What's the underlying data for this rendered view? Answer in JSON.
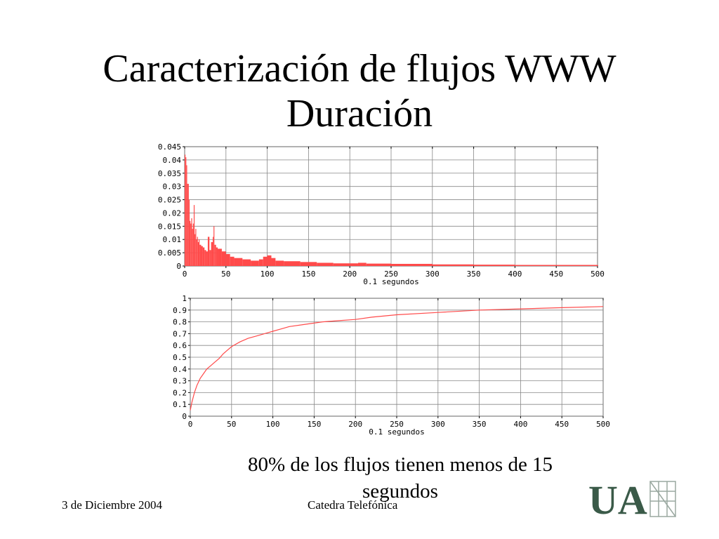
{
  "slide": {
    "title_line1": "Caracterización de flujos WWW",
    "title_line2": "Duración",
    "caption": "80% de los flujos tienen menos de 15 segundos",
    "footer_date": "3 de Diciembre 2004",
    "footer_org": "Catedra Telefónica",
    "logo_text": "UA"
  },
  "colors": {
    "series": "#ff4a4a",
    "grid": "#888888",
    "logo": "#3a5a48"
  },
  "chart_data": [
    {
      "type": "bar",
      "xlabel": "0.1 segundos",
      "xlim": [
        0,
        500
      ],
      "ylim": [
        0,
        0.045
      ],
      "xticks": [
        0,
        50,
        100,
        150,
        200,
        250,
        300,
        350,
        400,
        450,
        500
      ],
      "yticks": [
        "0",
        "0.005",
        "0.01",
        "0.015",
        "0.02",
        "0.025",
        "0.03",
        "0.035",
        "0.04",
        "0.045"
      ],
      "grid": true,
      "series": [
        {
          "x": [
            0,
            1,
            2,
            3,
            4,
            5,
            6,
            7,
            8,
            9,
            10,
            11,
            12,
            13,
            14,
            15,
            16,
            17,
            18,
            20,
            22,
            24,
            26,
            28,
            30,
            32,
            34,
            35,
            36,
            38,
            40,
            45,
            50,
            55,
            60,
            70,
            80,
            90,
            95,
            100,
            105,
            110,
            120,
            140,
            160,
            180,
            200,
            210,
            220,
            250,
            300,
            350,
            400,
            450,
            500
          ],
          "y": [
            0.042,
            0.041,
            0.038,
            0.031,
            0.031,
            0.025,
            0.017,
            0.016,
            0.018,
            0.014,
            0.016,
            0.023,
            0.012,
            0.014,
            0.01,
            0.011,
            0.009,
            0.01,
            0.008,
            0.0075,
            0.007,
            0.006,
            0.0055,
            0.011,
            0.006,
            0.009,
            0.011,
            0.015,
            0.008,
            0.007,
            0.0065,
            0.0055,
            0.0045,
            0.0035,
            0.003,
            0.0025,
            0.002,
            0.0025,
            0.0035,
            0.004,
            0.003,
            0.002,
            0.0018,
            0.0015,
            0.0012,
            0.001,
            0.001,
            0.0012,
            0.0009,
            0.0008,
            0.0006,
            0.0005,
            0.0004,
            0.0004,
            0.0003
          ]
        }
      ]
    },
    {
      "type": "line",
      "xlabel": "0.1 segundos",
      "xlim": [
        0,
        500
      ],
      "ylim": [
        0,
        1
      ],
      "xticks": [
        0,
        50,
        100,
        150,
        200,
        250,
        300,
        350,
        400,
        450,
        500
      ],
      "yticks": [
        "0",
        "0.1",
        "0.2",
        "0.3",
        "0.4",
        "0.5",
        "0.6",
        "0.7",
        "0.8",
        "0.9",
        "1"
      ],
      "grid": true,
      "series": [
        {
          "x": [
            0,
            2,
            5,
            8,
            12,
            16,
            20,
            25,
            30,
            35,
            40,
            45,
            50,
            60,
            70,
            80,
            90,
            100,
            110,
            120,
            140,
            160,
            180,
            200,
            220,
            250,
            300,
            350,
            400,
            450,
            500
          ],
          "y": [
            0.05,
            0.12,
            0.2,
            0.26,
            0.32,
            0.36,
            0.4,
            0.43,
            0.46,
            0.49,
            0.53,
            0.56,
            0.59,
            0.63,
            0.66,
            0.68,
            0.7,
            0.72,
            0.74,
            0.76,
            0.78,
            0.8,
            0.81,
            0.82,
            0.84,
            0.86,
            0.88,
            0.9,
            0.91,
            0.92,
            0.93
          ]
        }
      ]
    }
  ]
}
